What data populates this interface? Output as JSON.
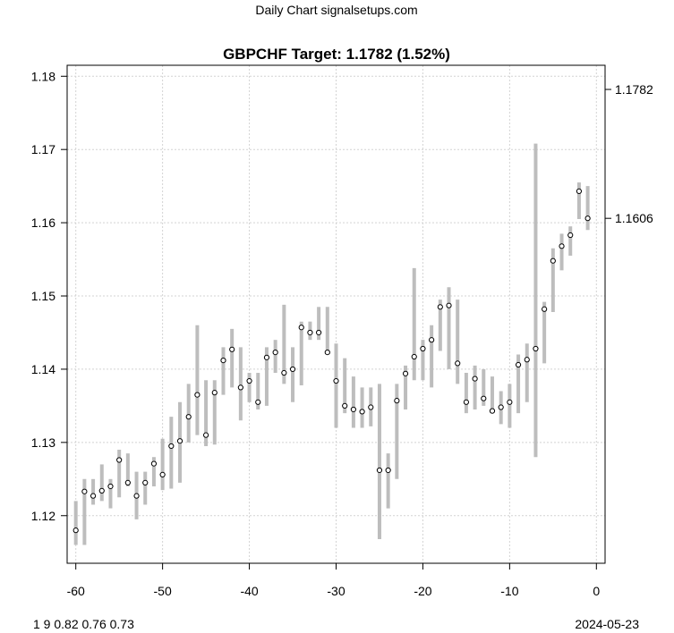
{
  "header": {
    "source": "Daily Chart signalsetups.com"
  },
  "footer": {
    "left": "1 9 0.82 0.76 0.73",
    "right": "2024-05-23"
  },
  "chart_data": {
    "type": "range-bar",
    "title": "GBPCHF Target: 1.1782 (1.52%)",
    "xlabel": "",
    "ylabel": "",
    "xlim": [
      -61,
      1
    ],
    "ylim": [
      1.1135,
      1.1815
    ],
    "grid": true,
    "x_ticks": [
      -60,
      -50,
      -40,
      -30,
      -20,
      -10,
      0
    ],
    "y_ticks": [
      1.12,
      1.13,
      1.14,
      1.15,
      1.16,
      1.17,
      1.18
    ],
    "y_tick_labels": [
      "1.12",
      "1.13",
      "1.14",
      "1.15",
      "1.16",
      "1.17",
      "1.18"
    ],
    "right_axis_labels": [
      {
        "value": 1.1782,
        "label": "1.1782"
      },
      {
        "value": 1.1606,
        "label": "1.1606"
      }
    ],
    "x": [
      -60,
      -59,
      -58,
      -57,
      -56,
      -55,
      -54,
      -53,
      -52,
      -51,
      -50,
      -49,
      -48,
      -47,
      -46,
      -45,
      -44,
      -43,
      -42,
      -41,
      -40,
      -39,
      -38,
      -37,
      -36,
      -35,
      -34,
      -33,
      -32,
      -31,
      -30,
      -29,
      -28,
      -27,
      -26,
      -25,
      -24,
      -23,
      -22,
      -21,
      -20,
      -19,
      -18,
      -17,
      -16,
      -15,
      -14,
      -13,
      -12,
      -11,
      -10,
      -9,
      -8,
      -7,
      -6,
      -5,
      -4,
      -3,
      -2,
      -1
    ],
    "high": [
      1.122,
      1.125,
      1.125,
      1.127,
      1.125,
      1.129,
      1.1285,
      1.126,
      1.126,
      1.128,
      1.1305,
      1.1335,
      1.1355,
      1.138,
      1.146,
      1.1385,
      1.1385,
      1.143,
      1.1455,
      1.143,
      1.1395,
      1.1395,
      1.143,
      1.144,
      1.1488,
      1.143,
      1.1465,
      1.1465,
      1.1485,
      1.1485,
      1.1435,
      1.1415,
      1.139,
      1.1375,
      1.1375,
      1.138,
      1.1285,
      1.138,
      1.1405,
      1.1538,
      1.144,
      1.146,
      1.1495,
      1.1512,
      1.1495,
      1.1395,
      1.1405,
      1.14,
      1.139,
      1.137,
      1.138,
      1.142,
      1.1435,
      1.1708,
      1.1492,
      1.1565,
      1.1585,
      1.1595,
      1.1655,
      1.165
    ],
    "low": [
      1.116,
      1.116,
      1.1215,
      1.122,
      1.121,
      1.1225,
      1.124,
      1.1195,
      1.1215,
      1.124,
      1.1235,
      1.1237,
      1.1245,
      1.13,
      1.131,
      1.1295,
      1.1297,
      1.1365,
      1.1375,
      1.133,
      1.1355,
      1.1345,
      1.135,
      1.1395,
      1.138,
      1.1355,
      1.1378,
      1.144,
      1.144,
      1.142,
      1.132,
      1.134,
      1.132,
      1.132,
      1.1322,
      1.1168,
      1.121,
      1.125,
      1.1345,
      1.1385,
      1.1385,
      1.1375,
      1.1425,
      1.14,
      1.138,
      1.134,
      1.1345,
      1.135,
      1.134,
      1.1325,
      1.132,
      1.134,
      1.1355,
      1.128,
      1.1408,
      1.1478,
      1.1535,
      1.1555,
      1.1605,
      1.159
    ],
    "close": [
      1.118,
      1.1233,
      1.1227,
      1.1234,
      1.124,
      1.1276,
      1.1245,
      1.1227,
      1.1245,
      1.1271,
      1.1256,
      1.1295,
      1.1302,
      1.1335,
      1.1365,
      1.131,
      1.1368,
      1.1412,
      1.1427,
      1.1375,
      1.1384,
      1.1355,
      1.1416,
      1.1423,
      1.1395,
      1.14,
      1.1457,
      1.145,
      1.145,
      1.1423,
      1.1384,
      1.135,
      1.1345,
      1.1342,
      1.1348,
      1.1262,
      1.1262,
      1.1357,
      1.1394,
      1.1417,
      1.1428,
      1.144,
      1.1485,
      1.1487,
      1.1408,
      1.1355,
      1.1387,
      1.136,
      1.1343,
      1.1348,
      1.1355,
      1.1406,
      1.1413,
      1.1428,
      1.1482,
      1.1548,
      1.1568,
      1.1583,
      1.1643,
      1.1606
    ]
  }
}
